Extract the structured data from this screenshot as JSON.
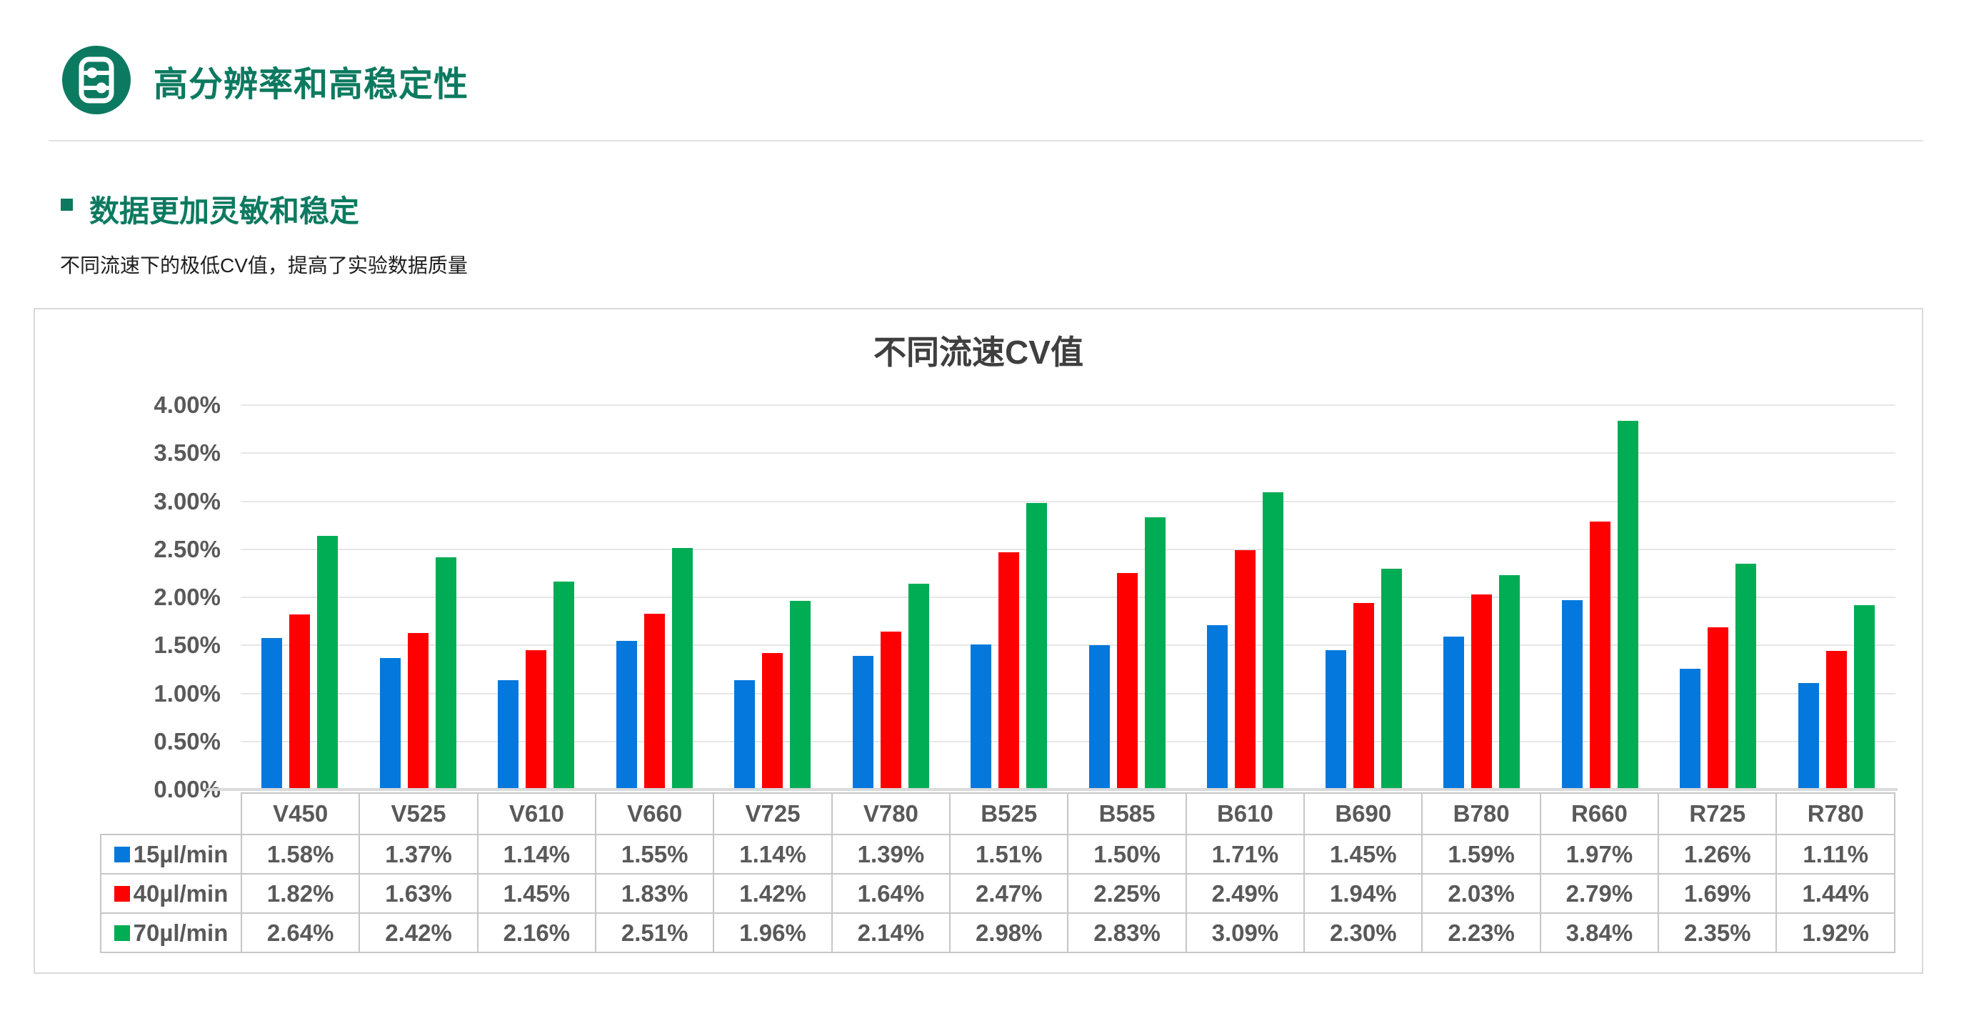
{
  "header": {
    "title": "高分辨率和高稳定性",
    "icon": "sliders-icon",
    "accent_color": "#0C7A60"
  },
  "section": {
    "heading": "数据更加灵敏和稳定",
    "description": "不同流速下的极低CV值，提高了实验数据质量"
  },
  "chart_data": {
    "type": "bar",
    "title": "不同流速CV值",
    "categories": [
      "V450",
      "V525",
      "V610",
      "V660",
      "V725",
      "V780",
      "B525",
      "B585",
      "B610",
      "B690",
      "B780",
      "R660",
      "R725",
      "R780"
    ],
    "series": [
      {
        "name": "15µl/min",
        "color": "#0478DC",
        "values": [
          1.58,
          1.37,
          1.14,
          1.55,
          1.14,
          1.39,
          1.51,
          1.5,
          1.71,
          1.45,
          1.59,
          1.97,
          1.26,
          1.11
        ]
      },
      {
        "name": "40µl/min",
        "color": "#FE0000",
        "values": [
          1.82,
          1.63,
          1.45,
          1.83,
          1.42,
          1.64,
          2.47,
          2.25,
          2.49,
          1.94,
          2.03,
          2.79,
          1.69,
          1.44
        ]
      },
      {
        "name": "70µl/min",
        "color": "#00AC54",
        "values": [
          2.64,
          2.42,
          2.16,
          2.51,
          1.96,
          2.14,
          2.98,
          2.83,
          3.09,
          2.3,
          2.23,
          3.84,
          2.35,
          1.92
        ]
      }
    ],
    "ylim": [
      0,
      4
    ],
    "ytick_step": 0.5,
    "ytick_labels": [
      "0.00%",
      "0.50%",
      "1.00%",
      "1.50%",
      "2.00%",
      "2.50%",
      "3.00%",
      "3.50%",
      "4.00%"
    ],
    "value_suffix": "%",
    "grid": true,
    "legend_position": "table-left",
    "data_table_shown": true,
    "text_color": "#595959",
    "title_color": "#3F3F3F"
  }
}
